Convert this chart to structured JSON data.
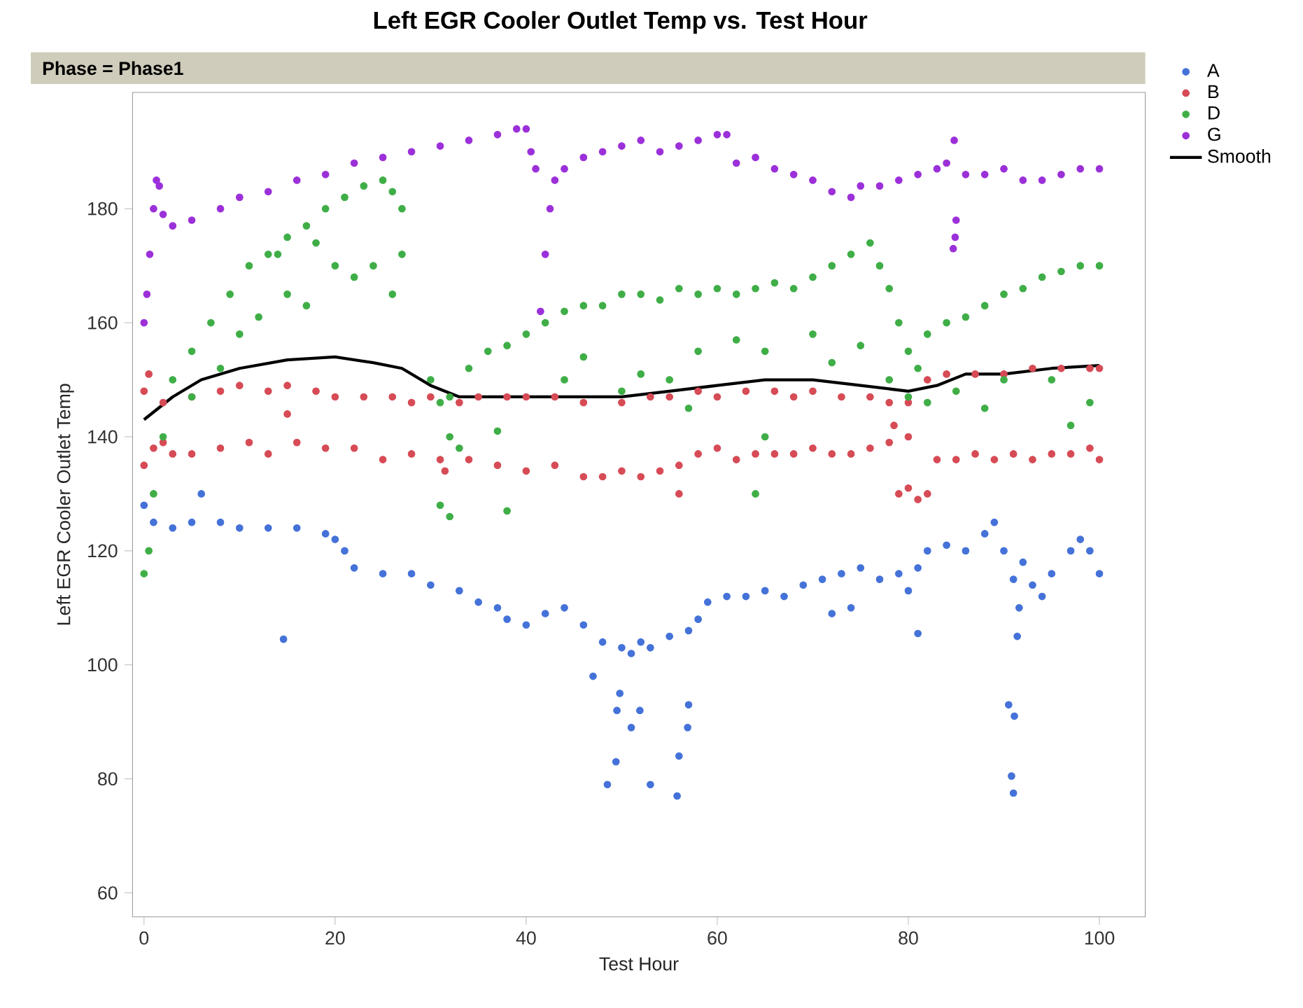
{
  "chart_data": {
    "type": "scatter",
    "title": "Left EGR Cooler Outlet Temp vs. Test Hour",
    "subtitle": "Phase = Phase1",
    "xlabel": "Test Hour",
    "ylabel": "Left EGR Cooler Outlet Temp",
    "xlim": [
      -1.2,
      104.8
    ],
    "ylim": [
      55.8,
      200.4
    ],
    "xticks": [
      0,
      20,
      40,
      60,
      80,
      100
    ],
    "yticks": [
      60,
      80,
      100,
      120,
      140,
      160,
      180
    ],
    "grid": false,
    "legend": "right",
    "series": [
      {
        "name": "A",
        "marker": "circle",
        "color": "#4472d8",
        "x": [
          0,
          1,
          3,
          5,
          8,
          10,
          13,
          16,
          19,
          20,
          21,
          22,
          25,
          28,
          30,
          33,
          35,
          37,
          38,
          40,
          42,
          44,
          46,
          48,
          50,
          51,
          52,
          53,
          55,
          57,
          58,
          59,
          61,
          63,
          65,
          67,
          69,
          71,
          73,
          75,
          77,
          79,
          80,
          81,
          82,
          84,
          86,
          88,
          89,
          90,
          91,
          92,
          93,
          94,
          95,
          97,
          98,
          99,
          100,
          14.6,
          48.5,
          49.4,
          49.5,
          49.8,
          51,
          51.9,
          53,
          55.8,
          56,
          56.9,
          57,
          91,
          90.8,
          90.5,
          91.1,
          91.4,
          91.6,
          81,
          6,
          47,
          72,
          74
        ],
        "values": [
          128,
          125,
          124,
          125,
          125,
          124,
          124,
          124,
          123,
          122,
          120,
          117,
          116,
          116,
          114,
          113,
          111,
          110,
          108,
          107,
          109,
          110,
          107,
          104,
          103,
          102,
          104,
          103,
          105,
          106,
          108,
          111,
          112,
          112,
          113,
          112,
          114,
          115,
          116,
          117,
          115,
          116,
          113,
          117,
          120,
          121,
          120,
          123,
          125,
          120,
          115,
          118,
          114,
          112,
          116,
          120,
          122,
          120,
          116,
          104.5,
          79,
          83,
          92,
          95,
          89,
          92,
          79,
          77,
          84,
          89,
          93,
          77.5,
          80.5,
          93,
          91,
          105,
          110,
          105.5,
          130,
          98,
          109,
          110
        ]
      },
      {
        "name": "B",
        "marker": "circle",
        "color": "#d64b55",
        "x": [
          0,
          2,
          5,
          8,
          10,
          13,
          15,
          18,
          20,
          23,
          26,
          28,
          30,
          33,
          35,
          38,
          40,
          43,
          46,
          50,
          53,
          55,
          58,
          60,
          63,
          66,
          68,
          70,
          73,
          76,
          78,
          80,
          82,
          84,
          87,
          90,
          93,
          96,
          99,
          100,
          0,
          1,
          2,
          3,
          5,
          8,
          11,
          13,
          16,
          19,
          22,
          25,
          28,
          31,
          34,
          37,
          40,
          43,
          46,
          48,
          50,
          52,
          54,
          56,
          58,
          60,
          62,
          64,
          66,
          68,
          70,
          72,
          74,
          76,
          78,
          79,
          80,
          81,
          82,
          83,
          85,
          87,
          89,
          91,
          93,
          95,
          97,
          99,
          100,
          0.5,
          15,
          31.5,
          56,
          78.5,
          80
        ],
        "values": [
          148,
          146,
          147,
          148,
          149,
          148,
          149,
          148,
          147,
          147,
          147,
          146,
          147,
          146,
          147,
          147,
          147,
          147,
          146,
          146,
          147,
          147,
          148,
          147,
          148,
          148,
          147,
          148,
          147,
          147,
          146,
          146,
          150,
          151,
          151,
          151,
          152,
          152,
          152,
          152,
          135,
          138,
          139,
          137,
          137,
          138,
          139,
          137,
          139,
          138,
          138,
          136,
          137,
          136,
          136,
          135,
          134,
          135,
          133,
          133,
          134,
          133,
          134,
          135,
          137,
          138,
          136,
          137,
          137,
          137,
          138,
          137,
          137,
          138,
          139,
          130,
          131,
          129,
          130,
          136,
          136,
          137,
          136,
          137,
          136,
          137,
          137,
          138,
          136,
          151,
          144,
          134,
          130,
          142,
          140
        ]
      },
      {
        "name": "D",
        "marker": "circle",
        "color": "#3fae47",
        "x": [
          0,
          0.5,
          1,
          2,
          3,
          5,
          7,
          9,
          11,
          13,
          15,
          17,
          19,
          21,
          23,
          25,
          26,
          27,
          5,
          8,
          10,
          12,
          15,
          17,
          20,
          22,
          24,
          26,
          27,
          14,
          18,
          30,
          31,
          32,
          33,
          31,
          32,
          34,
          36,
          38,
          40,
          42,
          44,
          46,
          48,
          50,
          52,
          54,
          56,
          58,
          60,
          62,
          64,
          66,
          68,
          70,
          72,
          74,
          76,
          77,
          78,
          79,
          80,
          81,
          82,
          84,
          86,
          88,
          90,
          92,
          94,
          96,
          98,
          100,
          44,
          46,
          50,
          52,
          55,
          58,
          62,
          65,
          70,
          72,
          75,
          78,
          80,
          82,
          85,
          88,
          90,
          95,
          97,
          99,
          38,
          32,
          64,
          37,
          57,
          65
        ],
        "values": [
          116,
          120,
          130,
          140,
          150,
          155,
          160,
          165,
          170,
          172,
          175,
          177,
          180,
          182,
          184,
          185,
          183,
          180,
          147,
          152,
          158,
          161,
          165,
          163,
          170,
          168,
          170,
          165,
          172,
          172,
          174,
          150,
          146,
          140,
          138,
          128,
          147,
          152,
          155,
          156,
          158,
          160,
          162,
          163,
          163,
          165,
          165,
          164,
          166,
          165,
          166,
          165,
          166,
          167,
          166,
          168,
          170,
          172,
          174,
          170,
          166,
          160,
          155,
          152,
          158,
          160,
          161,
          163,
          165,
          166,
          168,
          169,
          170,
          170,
          150,
          154,
          148,
          151,
          150,
          155,
          157,
          155,
          158,
          153,
          156,
          150,
          147,
          146,
          148,
          145,
          150,
          150,
          142,
          146,
          127,
          126,
          130,
          141,
          145,
          140
        ]
      },
      {
        "name": "G",
        "marker": "circle",
        "color": "#9b30d9",
        "x": [
          0,
          0.3,
          0.6,
          1,
          1.3,
          1.6,
          2,
          3,
          5,
          8,
          10,
          13,
          16,
          19,
          22,
          25,
          28,
          31,
          34,
          37,
          39,
          40,
          40.5,
          41,
          41.5,
          42,
          42.5,
          43,
          44,
          46,
          48,
          50,
          52,
          54,
          56,
          58,
          60,
          61,
          62,
          64,
          66,
          68,
          70,
          72,
          74,
          75,
          77,
          79,
          81,
          83,
          84,
          84.8,
          85,
          84.9,
          84.7,
          86,
          88,
          90,
          92,
          94,
          96,
          98,
          100
        ],
        "values": [
          160,
          165,
          172,
          180,
          185,
          184,
          179,
          177,
          178,
          180,
          182,
          183,
          185,
          186,
          188,
          189,
          190,
          191,
          192,
          193,
          194,
          194,
          190,
          187,
          162,
          172,
          180,
          185,
          187,
          189,
          190,
          191,
          192,
          190,
          191,
          192,
          193,
          193,
          188,
          189,
          187,
          186,
          185,
          183,
          182,
          184,
          184,
          185,
          186,
          187,
          188,
          192,
          178,
          175,
          173,
          186,
          186,
          187,
          185,
          185,
          186,
          187,
          187
        ]
      },
      {
        "name": "Smooth",
        "type": "line",
        "marker": "none",
        "color": "#000000",
        "line_style": "solid",
        "x": [
          0,
          3,
          6,
          10,
          15,
          20,
          24,
          27,
          30,
          33,
          36,
          40,
          45,
          50,
          55,
          60,
          65,
          70,
          75,
          80,
          83,
          86,
          90,
          95,
          100
        ],
        "values": [
          143,
          147,
          150,
          152,
          153.5,
          154,
          153,
          152,
          149,
          147,
          147,
          147,
          147,
          147,
          148,
          149,
          150,
          150,
          149,
          148,
          149,
          151,
          151,
          152,
          152.5
        ]
      }
    ]
  }
}
